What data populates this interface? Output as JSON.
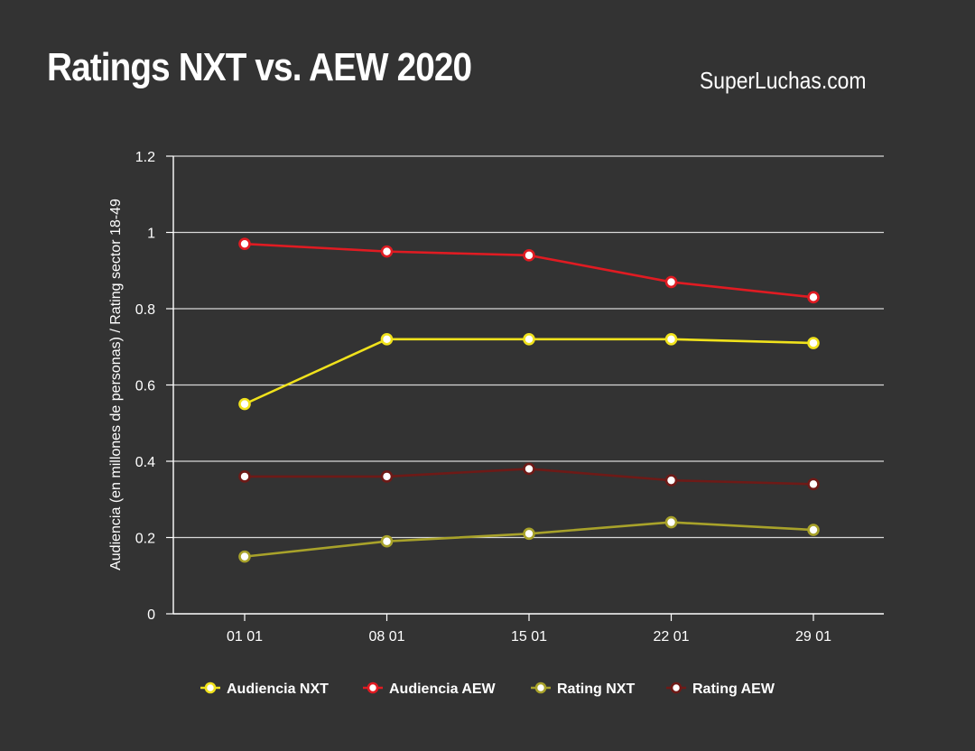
{
  "title": "Ratings NXT vs. AEW 2020",
  "source": "SuperLuchas.com",
  "chart_data": {
    "type": "line",
    "title": "Ratings NXT vs. AEW 2020",
    "xlabel": "",
    "ylabel": "Audiencia (en millones de personas) / Rating sector 18-49",
    "categories": [
      "01 01",
      "08 01",
      "15 01",
      "22 01",
      "29 01"
    ],
    "ylim": [
      0,
      1.2
    ],
    "yticks": [
      "0",
      "0.2",
      "0.4",
      "0.6",
      "0.8",
      "1",
      "1.2"
    ],
    "grid": true,
    "legend_position": "bottom",
    "series": [
      {
        "name": "Audiencia NXT",
        "color": "#f0e21c",
        "values": [
          0.55,
          0.72,
          0.72,
          0.72,
          0.71
        ]
      },
      {
        "name": "Audiencia AEW",
        "color": "#e01b22",
        "values": [
          0.97,
          0.95,
          0.94,
          0.87,
          0.83
        ]
      },
      {
        "name": "Rating NXT",
        "color": "#a8a22a",
        "values": [
          0.15,
          0.19,
          0.21,
          0.24,
          0.22
        ]
      },
      {
        "name": "Rating AEW",
        "color": "#6e1a17",
        "values": [
          0.36,
          0.36,
          0.38,
          0.35,
          0.34
        ]
      }
    ]
  }
}
